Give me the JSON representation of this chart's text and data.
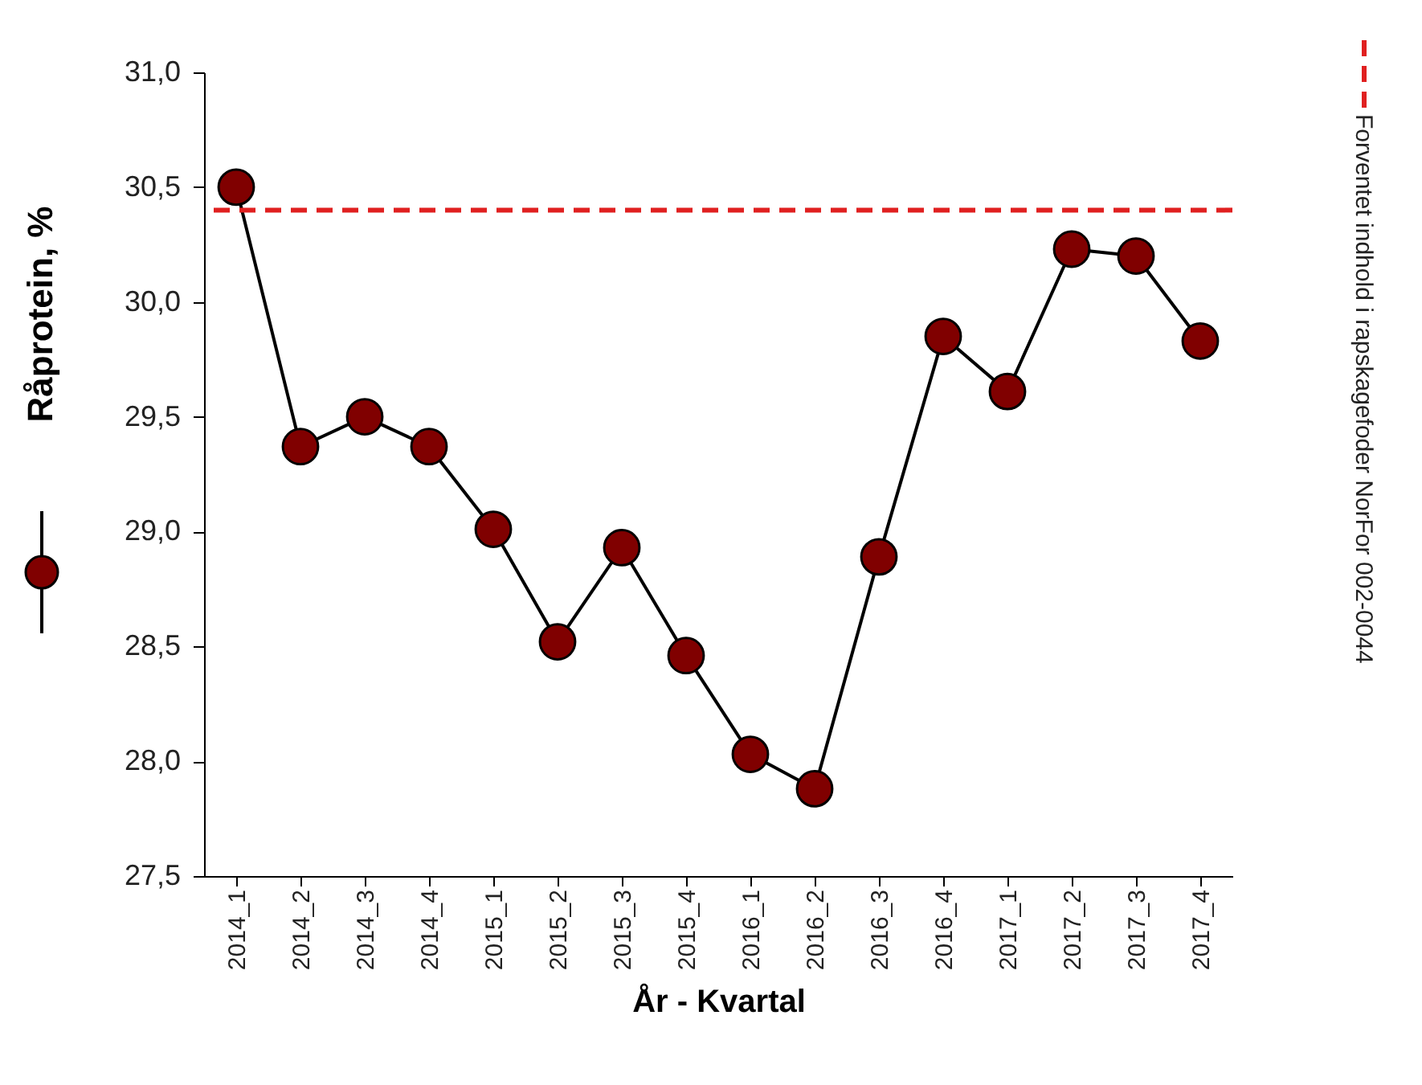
{
  "chart_data": {
    "type": "line",
    "xlabel": "År - Kvartal",
    "ylabel": "Råprotein, %",
    "categories": [
      "2014_1",
      "2014_2",
      "2014_3",
      "2014_4",
      "2015_1",
      "2015_2",
      "2015_3",
      "2015_4",
      "2016_1",
      "2016_2",
      "2016_3",
      "2016_4",
      "2017_1",
      "2017_2",
      "2017_3",
      "2017_4"
    ],
    "series": [
      {
        "color": "#800000",
        "values": [
          30.5,
          29.37,
          29.5,
          29.37,
          29.01,
          28.52,
          28.93,
          28.46,
          28.03,
          27.88,
          28.89,
          29.85,
          29.61,
          30.23,
          30.2,
          29.83
        ]
      }
    ],
    "ylim": [
      27.5,
      31.0
    ],
    "yticks": [
      {
        "value": 27.5,
        "label": "27,5"
      },
      {
        "value": 28.0,
        "label": "28,0"
      },
      {
        "value": 28.5,
        "label": "28,5"
      },
      {
        "value": 29.0,
        "label": "29,0"
      },
      {
        "value": 29.5,
        "label": "29,5"
      },
      {
        "value": 30.0,
        "label": "30,0"
      },
      {
        "value": 30.5,
        "label": "30,5"
      },
      {
        "value": 31.0,
        "label": "31,0"
      }
    ],
    "ref_lines": [
      {
        "axis": "y",
        "value": 30.4,
        "label": "Forventet indhold i rapskagefoder NorFor 002-0044",
        "color": "#e02020",
        "line_style": "dashed"
      }
    ],
    "marker": "circle",
    "line_style": "solid",
    "grid": false
  }
}
